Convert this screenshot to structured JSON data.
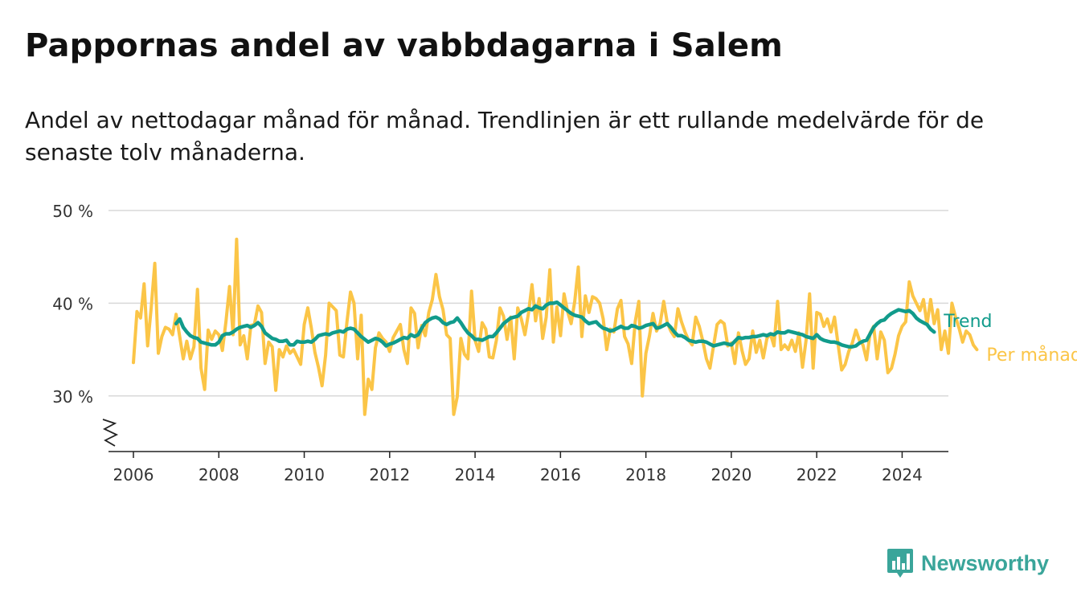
{
  "header": {
    "title": "Pappornas andel av vabbdagarna i Salem",
    "subtitle": "Andel av nettodagar månad för månad. Trendlinjen är ett rullande medelvärde för de senaste tolv månaderna."
  },
  "brand": {
    "name": "Newsworthy",
    "icon": "newsworthy-logo-icon",
    "color": "#3aa59a"
  },
  "chart_data": {
    "type": "line",
    "title": "",
    "xlabel": "",
    "ylabel": "",
    "x_start": "2006-01",
    "ylim": [
      24,
      50
    ],
    "xlim": [
      "2005-06",
      "2025-02"
    ],
    "y_ticks": [
      {
        "value": 30,
        "label": "30 %"
      },
      {
        "value": 40,
        "label": "40 %"
      },
      {
        "value": 50,
        "label": "50 %"
      }
    ],
    "x_ticks": [
      {
        "value": 2006,
        "label": "2006"
      },
      {
        "value": 2008,
        "label": "2008"
      },
      {
        "value": 2010,
        "label": "2010"
      },
      {
        "value": 2012,
        "label": "2012"
      },
      {
        "value": 2014,
        "label": "2014"
      },
      {
        "value": 2016,
        "label": "2016"
      },
      {
        "value": 2018,
        "label": "2018"
      },
      {
        "value": 2020,
        "label": "2020"
      },
      {
        "value": 2022,
        "label": "2022"
      },
      {
        "value": 2024,
        "label": "2024"
      }
    ],
    "grid": "horizontal",
    "axis_break": true,
    "series": [
      {
        "name": "Per månad",
        "color": "#fbc547",
        "values": [
          33.6,
          39.1,
          38.4,
          42.1,
          35.4,
          39.5,
          44.3,
          34.6,
          36.4,
          37.4,
          37.2,
          36.6,
          38.8,
          36.4,
          34.0,
          35.9,
          34.0,
          35.3,
          41.5,
          33.0,
          30.7,
          37.1,
          36.1,
          37.0,
          36.6,
          34.9,
          38.0,
          41.8,
          36.6,
          46.9,
          35.5,
          36.5,
          34.0,
          37.6,
          37.7,
          39.7,
          39.0,
          33.5,
          35.8,
          35.3,
          30.6,
          35.0,
          34.2,
          35.4,
          34.6,
          35.0,
          34.2,
          33.4,
          37.7,
          39.5,
          37.3,
          34.7,
          33.1,
          31.1,
          34.4,
          40.0,
          39.6,
          39.2,
          34.4,
          34.2,
          38.0,
          41.2,
          40.0,
          34.0,
          38.7,
          28.0,
          31.8,
          30.7,
          35.2,
          36.8,
          36.2,
          35.8,
          34.8,
          36.3,
          37.0,
          37.7,
          35.0,
          33.5,
          39.5,
          38.9,
          35.2,
          37.6,
          36.5,
          39.0,
          40.4,
          43.1,
          40.7,
          39.3,
          36.6,
          36.2,
          28.0,
          29.9,
          36.2,
          34.5,
          34.0,
          41.3,
          36.0,
          34.8,
          37.9,
          37.2,
          34.2,
          34.1,
          36.0,
          39.5,
          38.6,
          36.1,
          38.5,
          34.0,
          39.5,
          38.3,
          36.6,
          38.9,
          42.0,
          38.1,
          40.5,
          36.2,
          38.5,
          43.6,
          35.8,
          39.6,
          36.5,
          41.0,
          39.1,
          37.8,
          40.2,
          43.9,
          36.4,
          40.8,
          39.0,
          40.7,
          40.5,
          40.0,
          38.3,
          35.0,
          37.2,
          36.9,
          39.4,
          40.3,
          36.4,
          35.6,
          33.5,
          38.0,
          40.2,
          30.0,
          34.6,
          36.5,
          38.9,
          37.0,
          37.8,
          40.2,
          37.9,
          37.0,
          36.4,
          39.4,
          38.0,
          36.9,
          36.0,
          35.5,
          38.5,
          37.5,
          35.9,
          34.0,
          33.0,
          35.4,
          37.7,
          38.1,
          37.8,
          35.4,
          35.7,
          33.5,
          36.8,
          34.9,
          33.4,
          34.0,
          37.0,
          34.7,
          36.0,
          34.1,
          36.2,
          36.7,
          35.4,
          40.2,
          35.0,
          35.5,
          35.0,
          36.0,
          34.8,
          36.8,
          33.1,
          36.0,
          41.0,
          33.0,
          39.0,
          38.8,
          37.5,
          38.3,
          36.9,
          38.5,
          35.6,
          32.8,
          33.4,
          34.8,
          35.7,
          37.1,
          36.0,
          35.5,
          33.9,
          36.8,
          37.5,
          34.0,
          36.9,
          36.0,
          32.5,
          33.0,
          34.5,
          36.5,
          37.5,
          38.0,
          42.3,
          40.8,
          40.0,
          39.2,
          40.4,
          37.7,
          40.4,
          37.8,
          39.3,
          35.0,
          37.0,
          34.6,
          40.0,
          38.5,
          37.3,
          35.8,
          37.0,
          36.6,
          35.5,
          35.0
        ]
      },
      {
        "name": "Trend",
        "color": "#119b8b",
        "start_index": 12,
        "values": [
          37.8,
          38.3,
          37.4,
          36.9,
          36.5,
          36.3,
          36.2,
          35.8,
          35.7,
          35.6,
          35.5,
          35.5,
          35.8,
          36.5,
          36.7,
          36.7,
          36.9,
          37.2,
          37.4,
          37.5,
          37.6,
          37.4,
          37.6,
          37.9,
          37.5,
          36.8,
          36.5,
          36.2,
          36.1,
          35.9,
          35.9,
          36.0,
          35.5,
          35.5,
          35.9,
          35.8,
          35.8,
          35.9,
          35.8,
          36.1,
          36.5,
          36.6,
          36.7,
          36.6,
          36.8,
          36.9,
          37.0,
          36.9,
          37.2,
          37.3,
          37.2,
          36.8,
          36.4,
          36.1,
          35.8,
          36.0,
          36.2,
          36.1,
          35.8,
          35.4,
          35.6,
          35.7,
          35.9,
          36.1,
          36.3,
          36.2,
          36.6,
          36.4,
          36.6,
          37.3,
          37.9,
          38.2,
          38.4,
          38.5,
          38.3,
          37.9,
          37.7,
          37.9,
          38.0,
          38.4,
          37.9,
          37.3,
          36.8,
          36.5,
          36.1,
          36.1,
          36.0,
          36.2,
          36.4,
          36.4,
          36.8,
          37.3,
          37.8,
          38.1,
          38.4,
          38.5,
          38.6,
          39.0,
          39.2,
          39.4,
          39.3,
          39.7,
          39.5,
          39.4,
          39.8,
          40.0,
          40.0,
          40.1,
          39.8,
          39.5,
          39.2,
          38.9,
          38.7,
          38.6,
          38.5,
          38.1,
          37.8,
          37.9,
          38.0,
          37.6,
          37.3,
          37.2,
          37.0,
          37.1,
          37.3,
          37.5,
          37.3,
          37.3,
          37.6,
          37.5,
          37.3,
          37.4,
          37.6,
          37.7,
          37.8,
          37.3,
          37.4,
          37.6,
          37.8,
          37.4,
          36.9,
          36.5,
          36.5,
          36.3,
          36.0,
          35.9,
          35.8,
          35.9,
          35.9,
          35.8,
          35.6,
          35.4,
          35.5,
          35.6,
          35.7,
          35.6,
          35.5,
          35.9,
          36.3,
          36.2,
          36.3,
          36.3,
          36.4,
          36.4,
          36.5,
          36.6,
          36.5,
          36.7,
          36.6,
          36.9,
          36.8,
          36.8,
          37.0,
          36.9,
          36.8,
          36.7,
          36.6,
          36.4,
          36.3,
          36.2,
          36.6,
          36.2,
          36.0,
          35.9,
          35.8,
          35.8,
          35.7,
          35.5,
          35.4,
          35.3,
          35.3,
          35.4,
          35.7,
          35.9,
          36.0,
          36.7,
          37.4,
          37.8,
          38.1,
          38.2,
          38.6,
          38.9,
          39.1,
          39.3,
          39.2,
          39.1,
          39.2,
          38.9,
          38.4,
          38.1,
          37.9,
          37.7,
          37.2,
          36.9
        ]
      }
    ],
    "series_labels": [
      {
        "series": "Trend",
        "label": "Trend"
      },
      {
        "series": "Per månad",
        "label": "Per månad"
      }
    ]
  }
}
